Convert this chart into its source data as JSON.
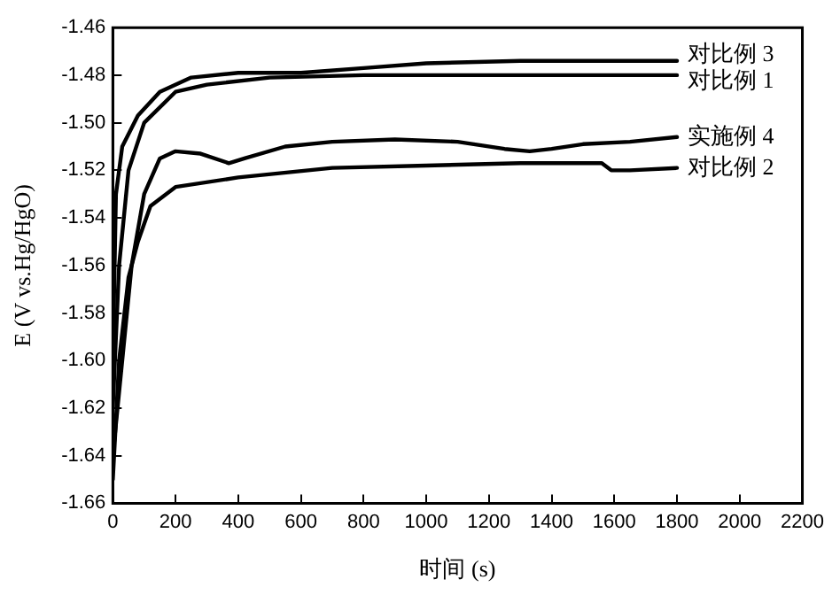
{
  "chart_data": {
    "type": "line",
    "xlabel": "时间 (s)",
    "ylabel": "E (V vs.Hg/HgO)",
    "xlim": [
      0,
      2200
    ],
    "xticks": [
      0,
      200,
      400,
      600,
      800,
      1000,
      1200,
      1400,
      1600,
      1800,
      2000,
      2200
    ],
    "ylim": [
      -1.66,
      -1.46
    ],
    "yticks": [
      -1.66,
      -1.64,
      -1.62,
      {
        "value": -1.6,
        "label": "-1.60"
      },
      -1.58,
      -1.56,
      -1.54,
      -1.52,
      {
        "value": -1.5,
        "label": "-1.50"
      },
      -1.48,
      -1.46
    ],
    "grid": false,
    "legend": false,
    "marker": "none",
    "line_style": "solid",
    "series": [
      {
        "name": "对比例 3",
        "color": "#000000",
        "x": [
          0,
          10,
          30,
          80,
          150,
          250,
          400,
          600,
          800,
          1000,
          1300,
          1600,
          1800
        ],
        "values": [
          -1.6,
          -1.53,
          -1.51,
          -1.497,
          -1.487,
          -1.481,
          -1.479,
          -1.479,
          -1.477,
          -1.475,
          -1.474,
          -1.474,
          -1.474
        ]
      },
      {
        "name": "对比例 1",
        "color": "#000000",
        "x": [
          0,
          20,
          50,
          100,
          200,
          300,
          500,
          800,
          1200,
          1800
        ],
        "values": [
          -1.62,
          -1.56,
          -1.52,
          -1.5,
          -1.487,
          -1.484,
          -1.481,
          -1.48,
          -1.48,
          -1.48
        ]
      },
      {
        "name": "实施例 4",
        "color": "#000000",
        "x": [
          0,
          30,
          60,
          100,
          150,
          200,
          280,
          370,
          420,
          550,
          700,
          900,
          1100,
          1250,
          1330,
          1400,
          1500,
          1650,
          1800
        ],
        "values": [
          -1.64,
          -1.6,
          -1.56,
          -1.53,
          -1.515,
          -1.512,
          -1.513,
          -1.517,
          -1.515,
          -1.51,
          -1.508,
          -1.507,
          -1.508,
          -1.511,
          -1.512,
          -1.511,
          -1.509,
          -1.508,
          -1.506
        ]
      },
      {
        "name": "对比例 2",
        "color": "#000000",
        "x": [
          0,
          20,
          50,
          80,
          120,
          200,
          400,
          700,
          1000,
          1300,
          1560,
          1590,
          1650,
          1800
        ],
        "values": [
          -1.65,
          -1.6,
          -1.565,
          -1.55,
          -1.535,
          -1.527,
          -1.523,
          -1.519,
          -1.518,
          -1.517,
          -1.517,
          -1.52,
          -1.52,
          -1.519
        ]
      }
    ]
  }
}
